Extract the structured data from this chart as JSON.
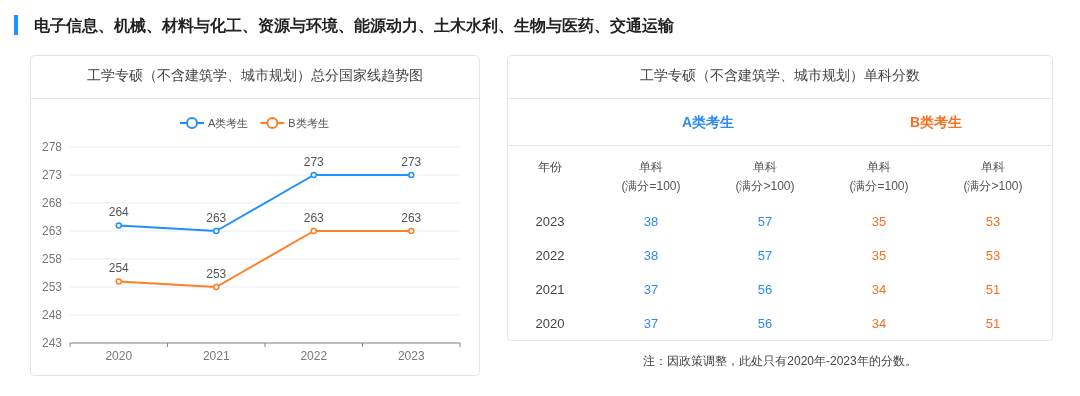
{
  "chart_data": [
    {
      "type": "line",
      "title": "工学专硕（不含建筑学、城市规划）总分国家线趋势图",
      "annotations": [
        "电子信息、机械、材料与化工、资源与环境、能源动力、土木水利、生物与医药、交通运输"
      ],
      "categories": [
        "2020",
        "2021",
        "2022",
        "2023"
      ],
      "series": [
        {
          "name": "A类考生",
          "color": "#1e90ff",
          "values": [
            264,
            263,
            273,
            273
          ]
        },
        {
          "name": "B类考生",
          "color": "#ff7f27",
          "values": [
            254,
            253,
            263,
            263
          ]
        }
      ],
      "ylim": [
        243,
        278
      ],
      "yticks": [
        243,
        248,
        253,
        258,
        263,
        268,
        273,
        278
      ],
      "grid": "y",
      "legend": "top",
      "marker": "circle",
      "line_style": "solid",
      "data_labels": true
    },
    {
      "type": "heatmap",
      "title": "工学专硕（不含建筑学、城市规划）单科分数",
      "ylabel": "年份",
      "categories": [
        "单科\n(满分=100)",
        "单科\n(满分>100)",
        "单科\n(满分=100)",
        "单科\n(满分>100)"
      ],
      "y_categories": [
        "2023",
        "2022",
        "2021",
        "2020"
      ],
      "cells": [
        [
          38,
          57,
          35,
          53
        ],
        [
          38,
          57,
          35,
          53
        ],
        [
          37,
          56,
          34,
          51
        ],
        [
          37,
          56,
          34,
          51
        ]
      ],
      "colors": [
        "#2b8af7",
        "#2b8af7",
        "#fa6e1f",
        "#fa6e1f"
      ],
      "data_labels": true,
      "annotations": [
        "A类考生",
        "B类考生",
        "注：因政策调整，此处只有2020年-2023年的分数。"
      ]
    }
  ]
}
